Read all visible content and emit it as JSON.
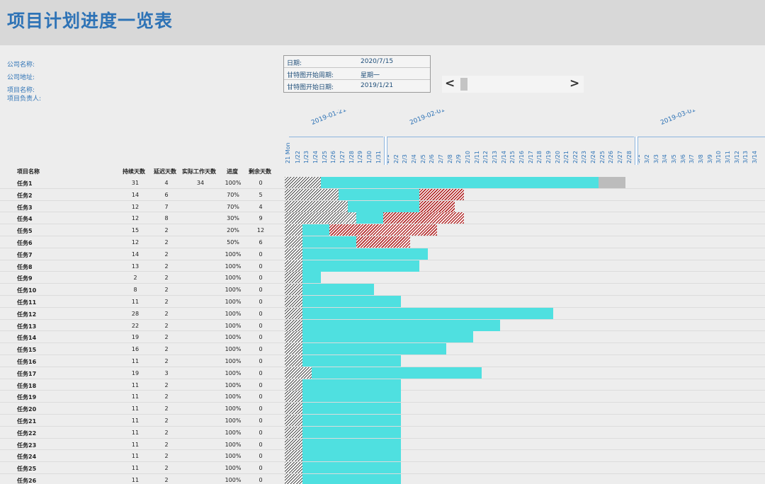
{
  "title": "项目计划进度一览表",
  "info": {
    "company_name": "公司名称:",
    "company_address": "公司地址:",
    "project_name": "项目名称:",
    "project_owner": "项目负责人:"
  },
  "date_box": {
    "date_label": "日期:",
    "date_value": "2020/7/15",
    "week_label": "甘特图开始周期:",
    "week_value": "星期一",
    "start_label": "甘特图开始日期:",
    "start_value": "2019/1/21"
  },
  "scrollbar": {
    "left_glyph": "<",
    "right_glyph": ">"
  },
  "timeline": {
    "weeks": [
      {
        "label": "2019-01-21",
        "day_index": 0
      },
      {
        "label": "2019-02-01",
        "day_index": 11
      },
      {
        "label": "2019-03-01",
        "day_index": 39
      }
    ],
    "first_tick": "21 Mon",
    "days": [
      "1/22",
      "1/23",
      "1/24",
      "1/25",
      "1/26",
      "1/27",
      "1/28",
      "1/29",
      "1/30",
      "1/31",
      "2/1",
      "2/2",
      "2/3",
      "2/4",
      "2/5",
      "2/6",
      "2/7",
      "2/8",
      "2/9",
      "2/10",
      "2/11",
      "2/12",
      "2/13",
      "2/14",
      "2/15",
      "2/16",
      "2/17",
      "2/18",
      "2/19",
      "2/20",
      "2/21",
      "2/22",
      "2/23",
      "2/24",
      "2/25",
      "2/26",
      "2/27",
      "2/28",
      "3/1",
      "3/2",
      "3/3",
      "3/4",
      "3/5",
      "3/6",
      "3/7",
      "3/8",
      "3/9",
      "3/10",
      "3/11",
      "3/12",
      "3/13",
      "3/14"
    ]
  },
  "columns": {
    "name": "项目名称",
    "duration": "持续天数",
    "delay": "延迟天数",
    "actual": "实际工作天数",
    "progress": "进度",
    "remaining": "剩余天数"
  },
  "tasks": [
    {
      "name": "任务1",
      "duration": "31",
      "delay": "4",
      "actual": "34",
      "progress": "100%",
      "remaining": "0",
      "segments": [
        [
          "hatch",
          4
        ],
        [
          "done",
          31
        ],
        [
          "rest",
          3
        ]
      ]
    },
    {
      "name": "任务2",
      "duration": "14",
      "delay": "6",
      "actual": "",
      "progress": "70%",
      "remaining": "5",
      "segments": [
        [
          "hatch",
          6
        ],
        [
          "done",
          9
        ],
        [
          "late",
          5
        ]
      ]
    },
    {
      "name": "任务3",
      "duration": "12",
      "delay": "7",
      "actual": "",
      "progress": "70%",
      "remaining": "4",
      "segments": [
        [
          "hatch",
          7
        ],
        [
          "done",
          8
        ],
        [
          "late",
          4
        ]
      ]
    },
    {
      "name": "任务4",
      "duration": "12",
      "delay": "8",
      "actual": "",
      "progress": "30%",
      "remaining": "9",
      "segments": [
        [
          "hatch",
          8
        ],
        [
          "done",
          3
        ],
        [
          "late",
          9
        ]
      ]
    },
    {
      "name": "任务5",
      "duration": "15",
      "delay": "2",
      "actual": "",
      "progress": "20%",
      "remaining": "12",
      "segments": [
        [
          "hatch",
          2
        ],
        [
          "done",
          3
        ],
        [
          "late",
          12
        ]
      ]
    },
    {
      "name": "任务6",
      "duration": "12",
      "delay": "2",
      "actual": "",
      "progress": "50%",
      "remaining": "6",
      "segments": [
        [
          "hatch",
          2
        ],
        [
          "done",
          6
        ],
        [
          "late",
          6
        ]
      ]
    },
    {
      "name": "任务7",
      "duration": "14",
      "delay": "2",
      "actual": "",
      "progress": "100%",
      "remaining": "0",
      "segments": [
        [
          "hatch",
          2
        ],
        [
          "done",
          14
        ]
      ]
    },
    {
      "name": "任务8",
      "duration": "13",
      "delay": "2",
      "actual": "",
      "progress": "100%",
      "remaining": "0",
      "segments": [
        [
          "hatch",
          2
        ],
        [
          "done",
          13
        ]
      ]
    },
    {
      "name": "任务9",
      "duration": "2",
      "delay": "2",
      "actual": "",
      "progress": "100%",
      "remaining": "0",
      "segments": [
        [
          "hatch",
          2
        ],
        [
          "done",
          2
        ]
      ]
    },
    {
      "name": "任务10",
      "duration": "8",
      "delay": "2",
      "actual": "",
      "progress": "100%",
      "remaining": "0",
      "segments": [
        [
          "hatch",
          2
        ],
        [
          "done",
          8
        ]
      ]
    },
    {
      "name": "任务11",
      "duration": "11",
      "delay": "2",
      "actual": "",
      "progress": "100%",
      "remaining": "0",
      "segments": [
        [
          "hatch",
          2
        ],
        [
          "done",
          11
        ]
      ]
    },
    {
      "name": "任务12",
      "duration": "28",
      "delay": "2",
      "actual": "",
      "progress": "100%",
      "remaining": "0",
      "segments": [
        [
          "hatch",
          2
        ],
        [
          "done",
          28
        ]
      ]
    },
    {
      "name": "任务13",
      "duration": "22",
      "delay": "2",
      "actual": "",
      "progress": "100%",
      "remaining": "0",
      "segments": [
        [
          "hatch",
          2
        ],
        [
          "done",
          22
        ]
      ]
    },
    {
      "name": "任务14",
      "duration": "19",
      "delay": "2",
      "actual": "",
      "progress": "100%",
      "remaining": "0",
      "segments": [
        [
          "hatch",
          2
        ],
        [
          "done",
          19
        ]
      ]
    },
    {
      "name": "任务15",
      "duration": "16",
      "delay": "2",
      "actual": "",
      "progress": "100%",
      "remaining": "0",
      "segments": [
        [
          "hatch",
          2
        ],
        [
          "done",
          16
        ]
      ]
    },
    {
      "name": "任务16",
      "duration": "11",
      "delay": "2",
      "actual": "",
      "progress": "100%",
      "remaining": "0",
      "segments": [
        [
          "hatch",
          2
        ],
        [
          "done",
          11
        ]
      ]
    },
    {
      "name": "任务17",
      "duration": "19",
      "delay": "3",
      "actual": "",
      "progress": "100%",
      "remaining": "0",
      "segments": [
        [
          "hatch",
          3
        ],
        [
          "done",
          19
        ]
      ]
    },
    {
      "name": "任务18",
      "duration": "11",
      "delay": "2",
      "actual": "",
      "progress": "100%",
      "remaining": "0",
      "segments": [
        [
          "hatch",
          2
        ],
        [
          "done",
          11
        ]
      ]
    },
    {
      "name": "任务19",
      "duration": "11",
      "delay": "2",
      "actual": "",
      "progress": "100%",
      "remaining": "0",
      "segments": [
        [
          "hatch",
          2
        ],
        [
          "done",
          11
        ]
      ]
    },
    {
      "name": "任务20",
      "duration": "11",
      "delay": "2",
      "actual": "",
      "progress": "100%",
      "remaining": "0",
      "segments": [
        [
          "hatch",
          2
        ],
        [
          "done",
          11
        ]
      ]
    },
    {
      "name": "任务21",
      "duration": "11",
      "delay": "2",
      "actual": "",
      "progress": "100%",
      "remaining": "0",
      "segments": [
        [
          "hatch",
          2
        ],
        [
          "done",
          11
        ]
      ]
    },
    {
      "name": "任务22",
      "duration": "11",
      "delay": "2",
      "actual": "",
      "progress": "100%",
      "remaining": "0",
      "segments": [
        [
          "hatch",
          2
        ],
        [
          "done",
          11
        ]
      ]
    },
    {
      "name": "任务23",
      "duration": "11",
      "delay": "2",
      "actual": "",
      "progress": "100%",
      "remaining": "0",
      "segments": [
        [
          "hatch",
          2
        ],
        [
          "done",
          11
        ]
      ]
    },
    {
      "name": "任务24",
      "duration": "11",
      "delay": "2",
      "actual": "",
      "progress": "100%",
      "remaining": "0",
      "segments": [
        [
          "hatch",
          2
        ],
        [
          "done",
          11
        ]
      ]
    },
    {
      "name": "任务25",
      "duration": "11",
      "delay": "2",
      "actual": "",
      "progress": "100%",
      "remaining": "0",
      "segments": [
        [
          "hatch",
          2
        ],
        [
          "done",
          11
        ]
      ]
    },
    {
      "name": "任务26",
      "duration": "11",
      "delay": "2",
      "actual": "",
      "progress": "100%",
      "remaining": "0",
      "segments": [
        [
          "hatch",
          2
        ],
        [
          "done",
          11
        ]
      ]
    }
  ]
}
